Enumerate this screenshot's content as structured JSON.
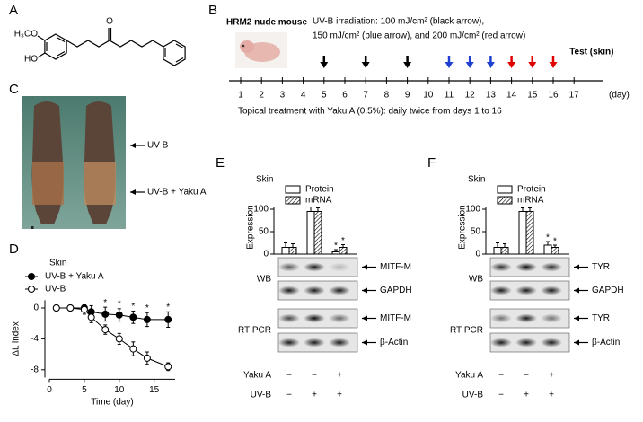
{
  "panel_labels": [
    "A",
    "B",
    "C",
    "D",
    "E",
    "F"
  ],
  "structure": {
    "substituents": [
      "H₃CO",
      "HO"
    ],
    "carbonyl": "O"
  },
  "timeline": {
    "animal": "HRM2 nude mouse",
    "irradiation": [
      "UV-B irradiation:  100 mJ/cm² (black arrow),",
      "150 mJ/cm² (blue arrow), and 200 mJ/cm² (red arrow)"
    ],
    "test": "Test (skin)",
    "test_day": 17,
    "days": [
      1,
      2,
      3,
      4,
      5,
      6,
      7,
      8,
      9,
      10,
      11,
      12,
      13,
      14,
      15,
      16,
      17
    ],
    "unit": "(day)",
    "uv_arrows": [
      {
        "color": "#000000",
        "days": [
          5,
          7,
          9
        ]
      },
      {
        "color": "#1f3fd0",
        "days": [
          11,
          12,
          13
        ]
      },
      {
        "color": "#e00000",
        "days": [
          14,
          15,
          16
        ]
      }
    ],
    "treatment": "Topical treatment with Yaku A (0.5%): daily twice from days 1 to 16"
  },
  "photo": {
    "labels": [
      "UV-B",
      "UV-B + Yaku A"
    ]
  },
  "chart_data": [
    {
      "type": "line",
      "title": "Skin",
      "xlabel": "Time (day)",
      "ylabel": "ΔL index",
      "xlim": [
        0,
        18
      ],
      "ylim": [
        -9,
        1
      ],
      "xticks": [
        0,
        5,
        10,
        15
      ],
      "yticks": [
        0,
        -4,
        -8
      ],
      "x": [
        1,
        3,
        5,
        6,
        8,
        10,
        12,
        14,
        17
      ],
      "series": [
        {
          "name": "UV-B + Yaku A",
          "marker": "filled",
          "color": "#000000",
          "values": [
            0,
            0,
            0,
            -0.5,
            -0.8,
            -0.9,
            -1.2,
            -1.5,
            -1.5
          ],
          "errors": [
            0.2,
            0.2,
            0.4,
            0.8,
            0.9,
            0.8,
            0.8,
            0.9,
            1.0
          ]
        },
        {
          "name": "UV-B",
          "marker": "open",
          "color": "#000000",
          "values": [
            0,
            0,
            -0.2,
            -1.2,
            -2.8,
            -4.0,
            -5.3,
            -6.5,
            -7.6
          ],
          "errors": [
            0.2,
            0.3,
            0.6,
            0.7,
            0.6,
            0.7,
            0.9,
            0.8,
            0.5
          ]
        }
      ],
      "annotations": [
        {
          "text": "*",
          "x": 8
        },
        {
          "text": "*",
          "x": 10
        },
        {
          "text": "*",
          "x": 12
        },
        {
          "text": "*",
          "x": 14
        },
        {
          "text": "*",
          "x": 17
        }
      ]
    },
    {
      "type": "bar",
      "title": "Skin",
      "ylabel": "Expression",
      "ylim": [
        0,
        120
      ],
      "yticks": [
        0,
        50,
        100
      ],
      "series": [
        {
          "name": "Protein",
          "fill": "white",
          "values": [
            15,
            95,
            5
          ],
          "errors": [
            10,
            10,
            5
          ]
        },
        {
          "name": "mRNA",
          "fill": "hatch",
          "values": [
            15,
            95,
            15
          ],
          "errors": [
            8,
            8,
            6
          ]
        }
      ],
      "annotations": [
        {
          "text": "*",
          "series": 0,
          "index": 2
        },
        {
          "text": "*",
          "series": 1,
          "index": 2
        }
      ],
      "conditions": [
        {
          "name": "Yaku A",
          "values": [
            "−",
            "−",
            "+"
          ]
        },
        {
          "name": "UV-B",
          "values": [
            "−",
            "+",
            "+"
          ]
        }
      ]
    },
    {
      "type": "bar",
      "title": "Skin",
      "ylabel": "Expression",
      "ylim": [
        0,
        120
      ],
      "yticks": [
        0,
        50,
        100
      ],
      "series": [
        {
          "name": "Protein",
          "fill": "white",
          "values": [
            15,
            95,
            20
          ],
          "errors": [
            10,
            8,
            8
          ]
        },
        {
          "name": "mRNA",
          "fill": "hatch",
          "values": [
            15,
            95,
            15
          ],
          "errors": [
            8,
            8,
            5
          ]
        }
      ],
      "annotations": [
        {
          "text": "*",
          "series": 0,
          "index": 2
        },
        {
          "text": "*",
          "series": 1,
          "index": 2
        }
      ],
      "conditions": [
        {
          "name": "Yaku A",
          "values": [
            "−",
            "−",
            "+"
          ]
        },
        {
          "name": "UV-B",
          "values": [
            "−",
            "+",
            "+"
          ]
        }
      ]
    }
  ],
  "blots": [
    {
      "methods": [
        {
          "label": "WB",
          "rows": [
            "MITF-M",
            "GAPDH"
          ]
        },
        {
          "label": "RT-PCR",
          "rows": [
            "MITF-M",
            "β-Actin"
          ]
        }
      ]
    },
    {
      "methods": [
        {
          "label": "WB",
          "rows": [
            "TYR",
            "GAPDH"
          ]
        },
        {
          "label": "RT-PCR",
          "rows": [
            "TYR",
            "β-Actin"
          ]
        }
      ]
    }
  ]
}
